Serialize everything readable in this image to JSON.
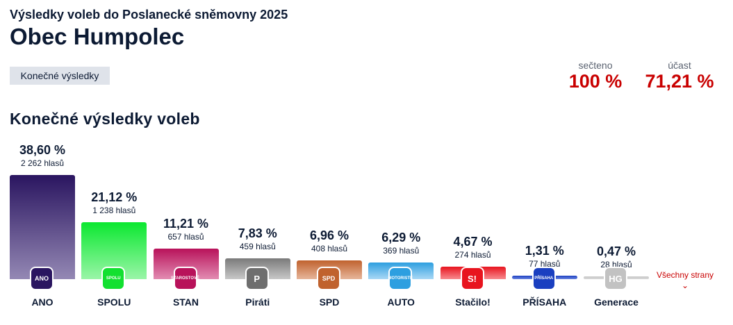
{
  "header": {
    "supertitle": "Výsledky voleb do Poslanecké sněmovny 2025",
    "title": "Obec Humpolec",
    "badge": "Konečné výsledky"
  },
  "stats": {
    "counted_label": "sečteno",
    "counted_value": "100 %",
    "turnout_label": "účast",
    "turnout_value": "71,21 %"
  },
  "section_title": "Konečné výsledky voleb",
  "more_link": "Všechny strany",
  "colors": {
    "accent": "#c90000",
    "text": "#0c1a33"
  },
  "chart_data": {
    "type": "bar",
    "title": "Konečné výsledky voleb",
    "categories": [
      "ANO",
      "SPOLU",
      "STAN",
      "Piráti",
      "SPD",
      "AUTO",
      "Stačilo!",
      "PŘÍSAHA",
      "Generace"
    ],
    "values": [
      38.6,
      21.12,
      11.21,
      7.83,
      6.96,
      6.29,
      4.67,
      1.31,
      0.47
    ],
    "ylim": [
      0,
      40
    ]
  },
  "parties": [
    {
      "name": "ANO",
      "pct": "38,60 %",
      "votes": "2 262 hlasů",
      "value": 38.6,
      "logo": "ANO",
      "c1": "#2a1560",
      "c2": "#9488b4",
      "logo_bg": "#2a1560"
    },
    {
      "name": "SPOLU",
      "pct": "21,12 %",
      "votes": "1 238 hlasů",
      "value": 21.12,
      "logo": "SPOLU",
      "c1": "#0be830",
      "c2": "#9af5a8",
      "logo_bg": "#12e030"
    },
    {
      "name": "STAN",
      "pct": "11,21 %",
      "votes": "657 hlasů",
      "value": 11.21,
      "logo": "STAROSTOVÉ",
      "c1": "#b8125a",
      "c2": "#e28cb2",
      "logo_bg": "#b8125a"
    },
    {
      "name": "Piráti",
      "pct": "7,83 %",
      "votes": "459 hlasů",
      "value": 7.83,
      "logo": "P",
      "c1": "#7a7a7a",
      "c2": "#c8c8c8",
      "logo_bg": "#6e6e6e"
    },
    {
      "name": "SPD",
      "pct": "6,96 %",
      "votes": "408 hlasů",
      "value": 6.96,
      "logo": "SPD",
      "c1": "#c0622e",
      "c2": "#e6b69b",
      "logo_bg": "#c0622e"
    },
    {
      "name": "AUTO",
      "pct": "6,29 %",
      "votes": "369 hlasů",
      "value": 6.29,
      "logo": "MOTORISTÉ",
      "c1": "#2d9fe0",
      "c2": "#a9d8f5",
      "logo_bg": "#2d9fe0"
    },
    {
      "name": "Stačilo!",
      "pct": "4,67 %",
      "votes": "274 hlasů",
      "value": 4.67,
      "logo": "S!",
      "c1": "#e8141e",
      "c2": "#f78b8f",
      "logo_bg": "#e8141e"
    },
    {
      "name": "PŘÍSAHA",
      "pct": "1,31 %",
      "votes": "77 hlasů",
      "value": 1.31,
      "logo": "PŘÍSAHA",
      "c1": "#1a3fc0",
      "c2": "#6c86e0",
      "logo_bg": "#1a3fc0"
    },
    {
      "name": "Generace",
      "pct": "0,47 %",
      "votes": "28 hlasů",
      "value": 0.47,
      "logo": "HG",
      "c1": "#c8c8c8",
      "c2": "#d8d8d8",
      "logo_bg": "#c2c2c2"
    }
  ]
}
